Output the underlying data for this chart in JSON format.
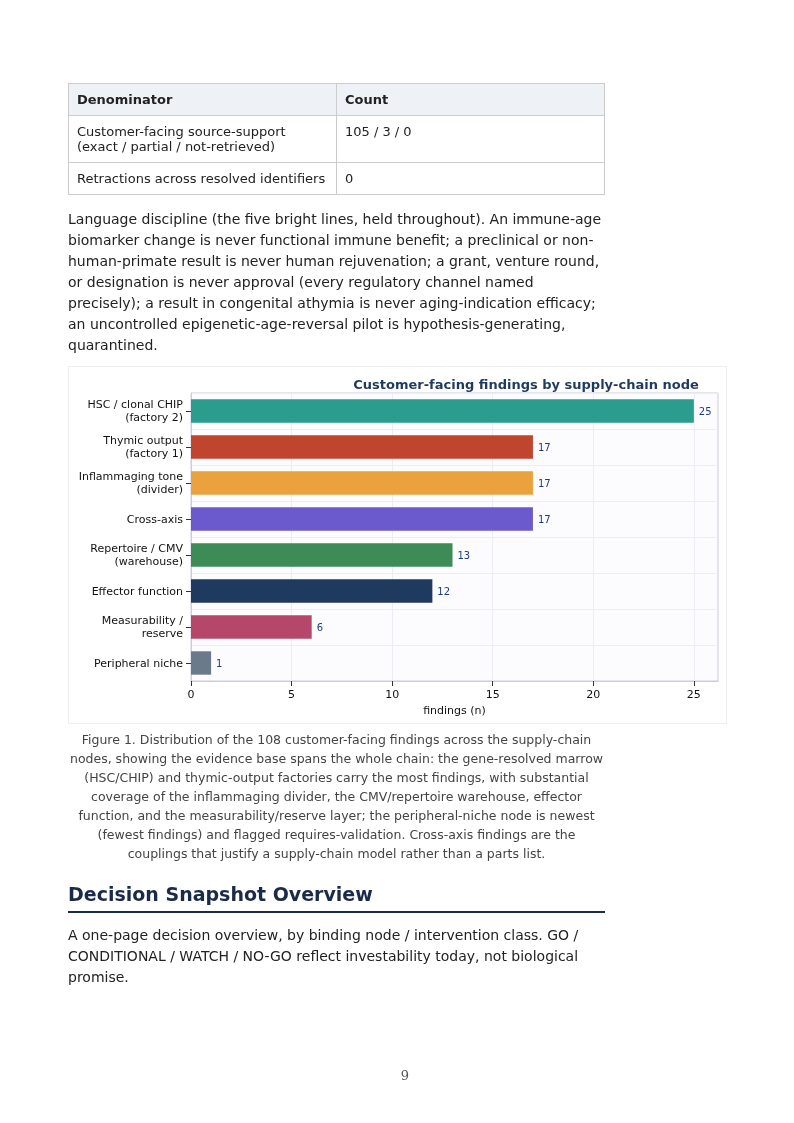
{
  "chart_data": {
    "type": "bar",
    "orientation": "horizontal",
    "title": "Customer-facing findings by supply-chain node",
    "xlabel": "findings (n)",
    "categories": [
      "HSC / clonal CHIP\n(factory 2)",
      "Thymic output\n(factory 1)",
      "Inflammaging tone\n(divider)",
      "Cross-axis",
      "Repertoire / CMV\n(warehouse)",
      "Effector function",
      "Measurability /\nreserve",
      "Peripheral niche"
    ],
    "values": [
      25,
      17,
      17,
      17,
      13,
      12,
      6,
      1
    ],
    "colors": [
      "#2a9d8f",
      "#c0452f",
      "#e9a23c",
      "#6a5acd",
      "#3d8b57",
      "#1f3a5f",
      "#b5476b",
      "#6b7a8a"
    ],
    "xlim": [
      0,
      26.2
    ],
    "xticks": [
      0,
      5,
      10,
      15,
      20,
      25
    ],
    "grid": true,
    "data_labels": true,
    "annotations": [
      "Denominator",
      "Count",
      "Customer-facing source-support (exact / partial / not-retrieved)",
      "105 / 3 / 0",
      "Retractions across resolved identifiers",
      "0",
      "Language discipline (the five bright lines, held throughout). An immune-age biomarker change is never functional immune benefit; a preclinical or non-human-primate result is never human rejuvenation; a grant, venture round, or designation is never approval (every regulatory channel named precisely); a result in congenital athymia is never aging-indication efficacy; an uncontrolled epigenetic-age-reversal pilot is hypothesis-generating, quarantined.",
      "Figure 1. Distribution of the 108 customer-facing findings across the supply-chain nodes, showing the evidence base spans the whole chain: the gene-resolved marrow (HSC/CHIP) and thymic-output factories carry the most findings, with substantial coverage of the inflammaging divider, the CMV/repertoire warehouse, effector function, and the measurability/reserve layer; the peripheral-niche node is newest (fewest findings) and flagged requires-validation. Cross-axis findings are the couplings that justify a supply-chain model rather than a parts list.",
      "Decision Snapshot Overview",
      "A one-page decision overview, by binding node / intervention class. GO / CONDITIONAL / WATCH / NO-GO reflect investability today, not biological promise.",
      "9"
    ]
  }
}
